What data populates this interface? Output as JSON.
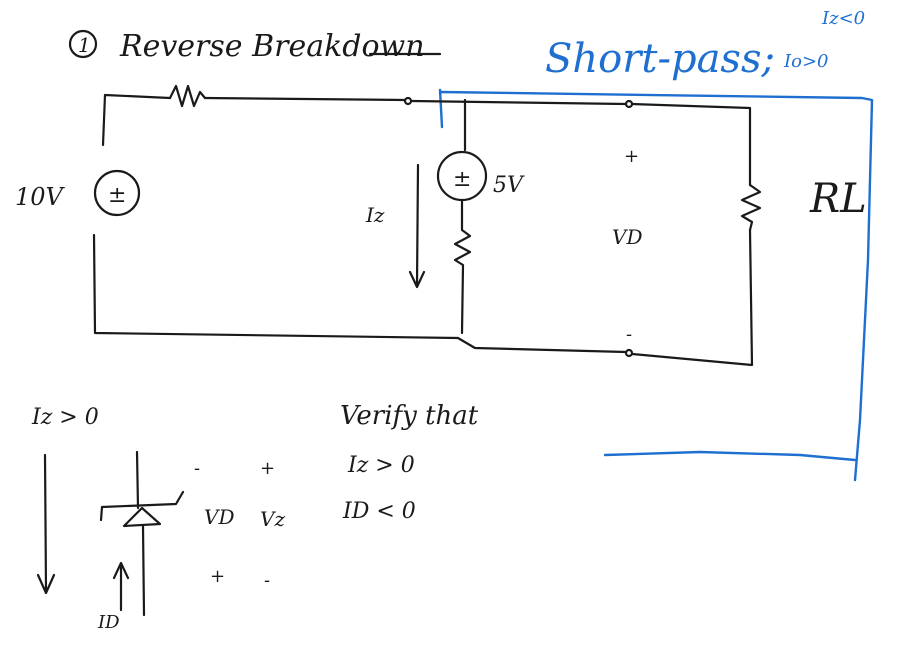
{
  "title": {
    "number": "1",
    "text": "Reverse Breakdown"
  },
  "blue_note": {
    "main": "Short-pass;",
    "cond1": "Iz<0",
    "cond2": "Io>0"
  },
  "circuit": {
    "source_voltage": "10V",
    "source_sign": "±",
    "zener_source_voltage": "5V",
    "zener_source_sign": "±",
    "zener_current": "Iz",
    "output_plus": "+",
    "output_voltage": "VD",
    "output_minus": "-",
    "load": "RL"
  },
  "notes": {
    "condition": "Iz > 0",
    "verify_heading": "Verify that",
    "verify1": "Iz > 0",
    "verify2": "ID < 0"
  },
  "diode_symbol": {
    "minus_top": "-",
    "plus_top": "+",
    "vd": "VD",
    "vz": "Vz",
    "plus_bottom": "+",
    "minus_bottom": "-",
    "id": "ID"
  }
}
